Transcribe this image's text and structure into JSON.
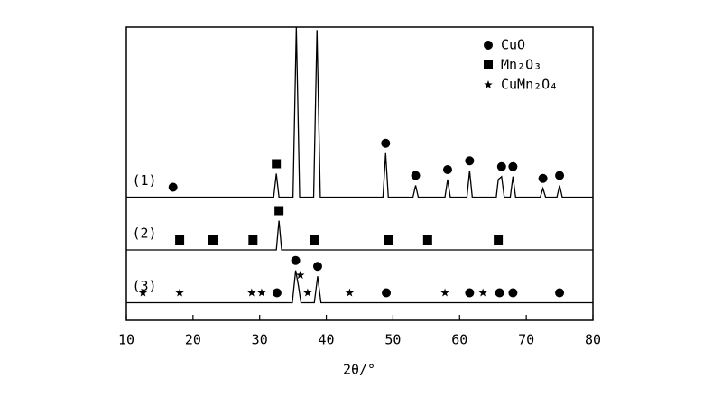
{
  "chart_data": {
    "type": "line",
    "x_label": "2θ/°",
    "xlim": [
      10,
      80
    ],
    "xticks": [
      10,
      20,
      30,
      40,
      50,
      60,
      70,
      80
    ],
    "ylim": [
      0,
      100
    ],
    "color": "#000000",
    "phases": [
      {
        "name": "CuO",
        "symbol": "circle"
      },
      {
        "name": "Mn₂O₃",
        "symbol": "square"
      },
      {
        "name": "CuMn₂O₄",
        "symbol": "star"
      }
    ],
    "series": [
      {
        "name": "(1)",
        "x": [
          10,
          32.1,
          32.5,
          32.9,
          35,
          35.5,
          36,
          38.1,
          38.6,
          39.1,
          48.5,
          48.9,
          49.3,
          53,
          53.4,
          53.8,
          57.8,
          58.2,
          58.6,
          61.1,
          61.5,
          61.9,
          65.5,
          65.8,
          66.3,
          66.7,
          67.6,
          68,
          68.4,
          72.1,
          72.5,
          72.9,
          74.6,
          75,
          75.4,
          80
        ],
        "values": [
          42,
          42,
          50,
          42,
          42,
          100,
          42,
          42,
          99,
          42,
          42,
          57,
          42,
          42,
          46,
          42,
          42,
          48,
          42,
          42,
          51,
          42,
          42,
          48,
          49,
          42,
          42,
          49,
          42,
          42,
          45,
          42,
          42,
          46,
          42,
          42
        ],
        "markers": [
          {
            "phase": 0,
            "x": [
              17,
              48.9,
              53.4,
              58.2,
              61.5,
              66.3,
              68,
              72.5,
              75
            ]
          },
          {
            "phase": 1,
            "x": [
              32.5
            ]
          }
        ]
      },
      {
        "name": "(2)",
        "x": [
          10,
          32.5,
          32.9,
          33.3,
          80
        ],
        "values": [
          24,
          24,
          34,
          24,
          24
        ],
        "markers": [
          {
            "phase": 1,
            "x": [
              18,
              23,
              29,
              32.9,
              38.2,
              49.4,
              55.2,
              65.8
            ]
          }
        ]
      },
      {
        "name": "(3)",
        "x": [
          10,
          34.9,
          35.4,
          35.8,
          36.2,
          38.2,
          38.7,
          39.2,
          80
        ],
        "values": [
          6,
          6,
          17,
          12,
          6,
          6,
          15,
          6,
          6
        ],
        "markers": [
          {
            "phase": 2,
            "x": [
              12.5,
              18,
              28.8,
              30.3,
              36.1,
              37.2,
              43.5,
              57.8,
              63.5
            ]
          },
          {
            "phase": 0,
            "x": [
              32.6,
              35.4,
              38.7,
              49,
              61.5,
              66,
              68,
              75
            ]
          }
        ]
      }
    ]
  }
}
